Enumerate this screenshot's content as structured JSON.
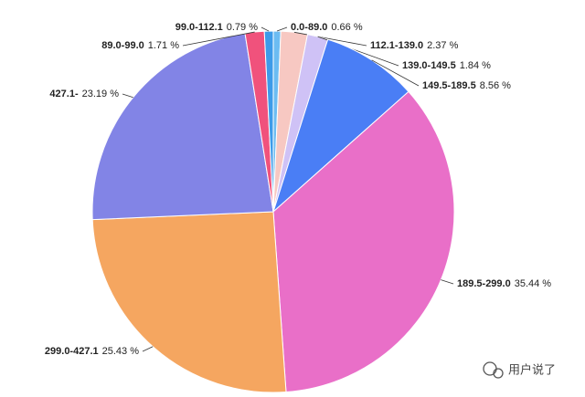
{
  "chart_data": {
    "type": "pie",
    "categories": [
      "0.0-89.0",
      "112.1-139.0",
      "139.0-149.5",
      "149.5-189.5",
      "189.5-299.0",
      "299.0-427.1",
      "427.1-",
      "89.0-99.0",
      "99.0-112.1"
    ],
    "values": [
      0.66,
      2.37,
      1.84,
      8.56,
      35.44,
      25.43,
      23.19,
      1.71,
      0.79
    ],
    "value_labels": [
      "0.66 %",
      "2.37 %",
      "1.84 %",
      "8.56 %",
      "35.44 %",
      "25.43 %",
      "23.19 %",
      "1.71 %",
      "0.79 %"
    ],
    "colors": [
      "#6cbcf2",
      "#f7c8c2",
      "#cfc2f6",
      "#4a7ef5",
      "#e96fc8",
      "#f5a660",
      "#8284e6",
      "#f0527c",
      "#3d9be9"
    ]
  },
  "watermark": "用户说了"
}
